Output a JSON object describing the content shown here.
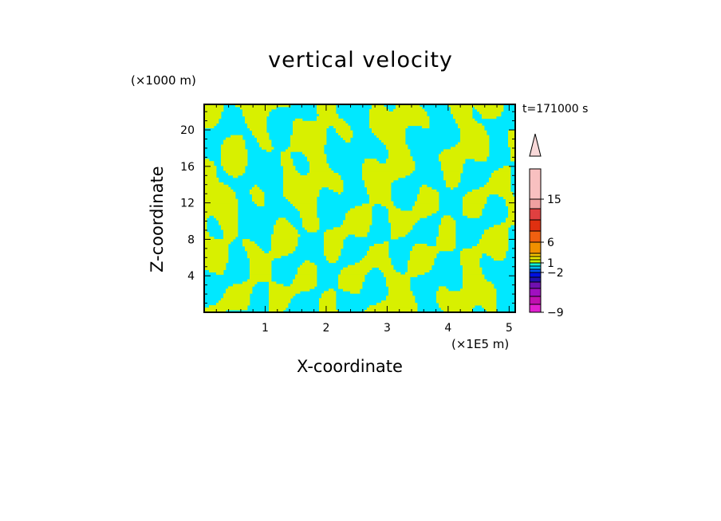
{
  "chart_data": {
    "type": "heatmap",
    "title": "vertical velocity",
    "xlabel": "X-coordinate",
    "ylabel": "Z-coordinate",
    "x_unit_label": "(×1E5 m)",
    "y_unit_label": "(×1000 m)",
    "time_label": "t=171000 s",
    "xlim": [
      0,
      5.1
    ],
    "ylim": [
      0,
      22.8
    ],
    "x_ticks": [
      1,
      2,
      3,
      4,
      5
    ],
    "y_ticks": [
      4,
      8,
      12,
      16,
      20
    ],
    "field_colors": {
      "positive": "#d8f000",
      "negative": "#00e8ff"
    },
    "colorbar": {
      "levels": [
        -12,
        -10,
        -8,
        -6,
        -4,
        -3,
        -2,
        -1,
        0,
        1,
        2,
        3,
        4,
        6,
        8,
        10,
        12,
        15,
        18
      ],
      "colors": [
        "#e020d0",
        "#c010b0",
        "#a010c0",
        "#7010b0",
        "#2010b0",
        "#0010e0",
        "#0050f0",
        "#00c0f0",
        "#10f0d0",
        "#c0f000",
        "#e8e800",
        "#f0c000",
        "#f09000",
        "#f06010",
        "#e03010",
        "#e04040",
        "#f0a0a0",
        "#f8c0c0"
      ],
      "labels": [
        {
          "text": "15",
          "value": 15
        },
        {
          "text": "6",
          "value": 6
        },
        {
          "text": "1",
          "value": 1
        },
        {
          "text": "−2",
          "value": -2
        },
        {
          "text": "−9",
          "value": -9
        }
      ],
      "extend": "max"
    }
  }
}
